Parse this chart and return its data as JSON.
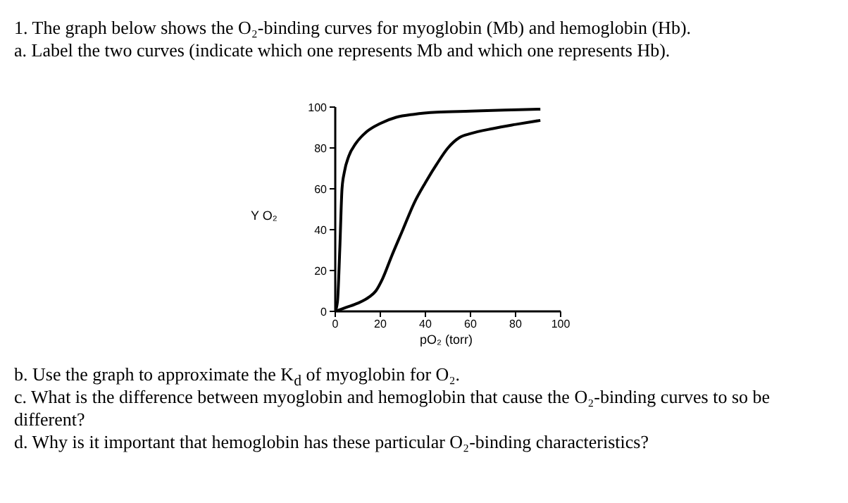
{
  "chart_data": {
    "type": "line",
    "title": "1. The graph below shows the O₂-binding curves for myoglobin (Mb) and hemoglobin (Hb).",
    "subtitle": "a. Label the two curves (indicate which one represents Mb and which one represents Hb).",
    "xlabel": "pO₂ (torr)",
    "ylabel": "Y O₂",
    "xlim": [
      0,
      100
    ],
    "xticks": [
      0,
      20,
      40,
      60,
      80,
      100
    ],
    "ylim": [
      0,
      100
    ],
    "yticks": [
      0,
      20,
      40,
      60,
      80,
      100
    ],
    "grid": false,
    "legend": false,
    "marker": "none",
    "line_style": "solid",
    "series": [
      {
        "color": "#000000",
        "x": [
          0,
          1,
          2,
          3,
          4,
          6,
          9,
          14,
          20,
          27,
          35,
          45,
          60,
          75,
          91
        ],
        "values": [
          0,
          5,
          30,
          60,
          68,
          76,
          82,
          88,
          92,
          95,
          96.5,
          97.5,
          98,
          98.5,
          99
        ]
      },
      {
        "color": "#000000",
        "x": [
          0,
          5,
          10,
          15,
          18,
          21,
          25,
          30,
          35,
          40,
          45,
          50,
          55,
          60,
          70,
          80,
          91
        ],
        "values": [
          0,
          2,
          4,
          7,
          10,
          16,
          27,
          40,
          53,
          63,
          72,
          80,
          85,
          87,
          89.5,
          91.5,
          93.5
        ]
      }
    ],
    "annotations": [
      "b. Use the graph to approximate the K$_{d}$ of myoglobin for O₂.",
      "c. What is the difference between myoglobin and hemoglobin that cause the O₂-binding curves to so be different?",
      "d. Why is it important that hemoglobin has these particular O₂-binding characteristics?"
    ]
  }
}
